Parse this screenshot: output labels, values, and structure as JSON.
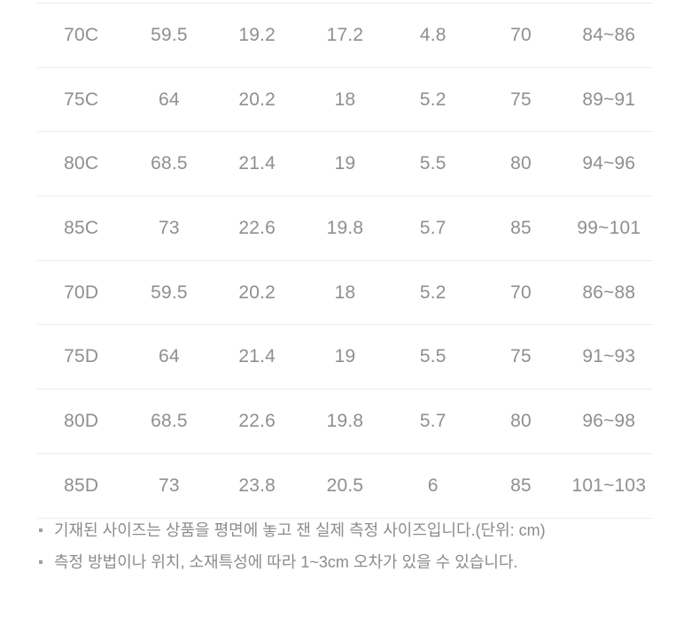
{
  "table": {
    "description": "size-measurement-table",
    "rows": [
      [
        "70C",
        "59.5",
        "19.2",
        "17.2",
        "4.8",
        "70",
        "84~86"
      ],
      [
        "75C",
        "64",
        "20.2",
        "18",
        "5.2",
        "75",
        "89~91"
      ],
      [
        "80C",
        "68.5",
        "21.4",
        "19",
        "5.5",
        "80",
        "94~96"
      ],
      [
        "85C",
        "73",
        "22.6",
        "19.8",
        "5.7",
        "85",
        "99~101"
      ],
      [
        "70D",
        "59.5",
        "20.2",
        "18",
        "5.2",
        "70",
        "86~88"
      ],
      [
        "75D",
        "64",
        "21.4",
        "19",
        "5.5",
        "75",
        "91~93"
      ],
      [
        "80D",
        "68.5",
        "22.6",
        "19.8",
        "5.7",
        "80",
        "96~98"
      ],
      [
        "85D",
        "73",
        "23.8",
        "20.5",
        "6",
        "85",
        "101~103"
      ]
    ]
  },
  "notes": [
    "기재된 사이즈는 상품을 평면에 놓고 잰 실제 측정 사이즈입니다.(단위: cm)",
    "측정 방법이나 위치, 소재특성에 따라 1~3cm 오차가 있을 수 있습니다."
  ],
  "colors": {
    "text": "#8f8f8f",
    "note_text": "#8c8c8c",
    "divider": "#ececec",
    "background": "#ffffff"
  }
}
